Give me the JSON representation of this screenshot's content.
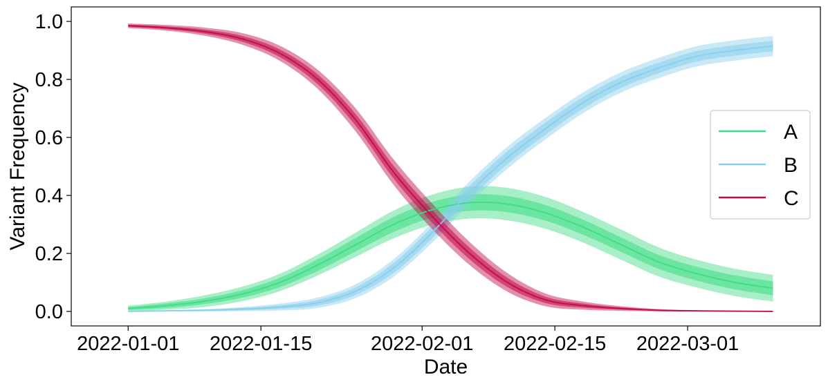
{
  "chart_data": {
    "type": "line",
    "xlabel": "Date",
    "ylabel": "Variant Frequency",
    "x_ticks": [
      "2022-01-01",
      "2022-01-15",
      "2022-02-01",
      "2022-02-15",
      "2022-03-01"
    ],
    "y_ticks": [
      "0.0",
      "0.2",
      "0.4",
      "0.6",
      "0.8",
      "1.0"
    ],
    "xlim": [
      "2021-12-26",
      "2022-03-15"
    ],
    "ylim": [
      -0.05,
      1.05
    ],
    "grid": false,
    "legend_position": "center-right",
    "band_description": "median line with inner and outer credible-interval bands",
    "x": [
      "2022-01-01",
      "2022-01-05",
      "2022-01-09",
      "2022-01-13",
      "2022-01-17",
      "2022-01-21",
      "2022-01-25",
      "2022-01-29",
      "2022-02-02",
      "2022-02-06",
      "2022-02-10",
      "2022-02-14",
      "2022-02-18",
      "2022-02-22",
      "2022-02-26",
      "2022-03-02",
      "2022-03-06",
      "2022-03-10"
    ],
    "series": [
      {
        "name": "A",
        "color": "#3ddc84",
        "median": [
          0.01,
          0.02,
          0.035,
          0.06,
          0.1,
          0.16,
          0.23,
          0.3,
          0.35,
          0.375,
          0.37,
          0.34,
          0.29,
          0.23,
          0.17,
          0.13,
          0.1,
          0.08
        ],
        "inner_half_width": [
          0.005,
          0.008,
          0.01,
          0.013,
          0.016,
          0.02,
          0.023,
          0.026,
          0.027,
          0.028,
          0.028,
          0.027,
          0.026,
          0.025,
          0.024,
          0.024,
          0.024,
          0.024
        ],
        "outer_half_width": [
          0.01,
          0.014,
          0.02,
          0.025,
          0.03,
          0.036,
          0.042,
          0.048,
          0.052,
          0.055,
          0.056,
          0.055,
          0.053,
          0.052,
          0.05,
          0.048,
          0.047,
          0.046
        ]
      },
      {
        "name": "B",
        "color": "#87ceeb",
        "median": [
          0.0,
          0.002,
          0.004,
          0.008,
          0.015,
          0.03,
          0.07,
          0.15,
          0.27,
          0.41,
          0.53,
          0.63,
          0.72,
          0.79,
          0.84,
          0.88,
          0.9,
          0.915
        ],
        "inner_half_width": [
          0.0,
          0.001,
          0.002,
          0.004,
          0.006,
          0.01,
          0.013,
          0.017,
          0.02,
          0.022,
          0.022,
          0.021,
          0.02,
          0.019,
          0.018,
          0.018,
          0.018,
          0.018
        ],
        "outer_half_width": [
          0.001,
          0.002,
          0.004,
          0.007,
          0.012,
          0.018,
          0.024,
          0.03,
          0.035,
          0.038,
          0.038,
          0.037,
          0.036,
          0.035,
          0.035,
          0.035,
          0.035,
          0.035
        ]
      },
      {
        "name": "C",
        "color": "#c2094a",
        "median": [
          0.985,
          0.978,
          0.965,
          0.94,
          0.89,
          0.8,
          0.66,
          0.48,
          0.33,
          0.2,
          0.1,
          0.04,
          0.02,
          0.01,
          0.004,
          0.002,
          0.001,
          0.0
        ],
        "inner_half_width": [
          0.004,
          0.005,
          0.007,
          0.01,
          0.013,
          0.017,
          0.02,
          0.022,
          0.022,
          0.02,
          0.016,
          0.011,
          0.007,
          0.004,
          0.002,
          0.001,
          0.001,
          0.0
        ],
        "outer_half_width": [
          0.008,
          0.01,
          0.014,
          0.02,
          0.026,
          0.033,
          0.04,
          0.044,
          0.044,
          0.04,
          0.032,
          0.022,
          0.014,
          0.008,
          0.004,
          0.002,
          0.001,
          0.001
        ]
      }
    ]
  }
}
